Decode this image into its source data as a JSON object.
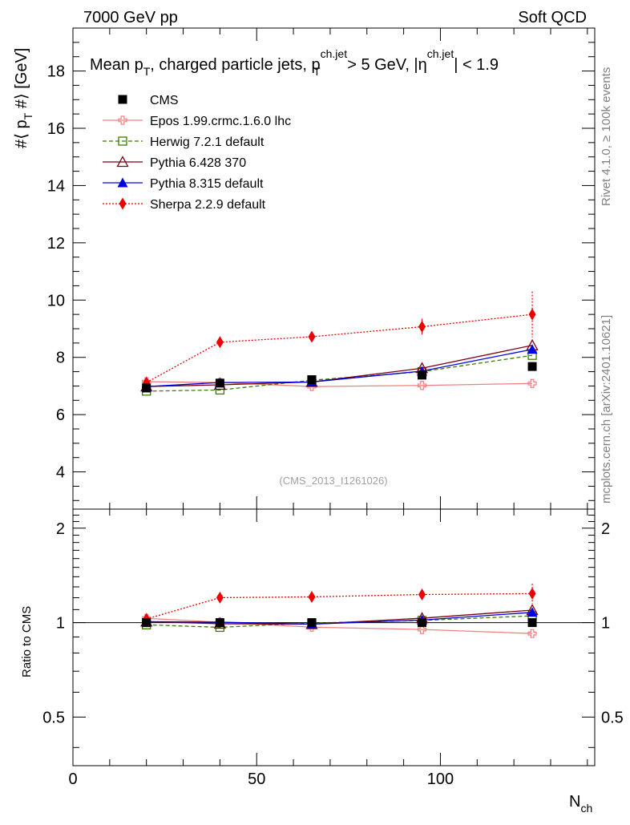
{
  "header": {
    "left": "7000 GeV pp",
    "right": "Soft QCD"
  },
  "side_labels": {
    "rivet": "Rivet 4.1.0, ≥ 100k events",
    "mcplots": "mcplots.cern.ch [arXiv:2401.10621]"
  },
  "title": {
    "t1": "Mean p",
    "t1_sub": "T",
    "t2": ", charged particle jets, p",
    "t2_sup": "ch.jet",
    "t2_sub": "T",
    "t3": " > 5 GeV,  |η",
    "t3_sup": "ch.jet",
    "t4": "| < 1.9"
  },
  "analysis_id": "(CMS_2013_I1261026)",
  "axis": {
    "ylabel_top_a": "#⟨ p",
    "ylabel_top_sub": "T",
    "ylabel_top_b": " #⟩ [GeV]",
    "ylabel_bottom": "Ratio to CMS",
    "xlabel_main": "N",
    "xlabel_sub": "ch"
  },
  "colors": {
    "CMS": "#000000",
    "Epos": "#f08080",
    "Herwig": "#3a7d00",
    "Pythia6": "#7a0010",
    "Pythia8": "#0000dd",
    "Sherpa": "#ee0000"
  },
  "chart_data": {
    "type": "line",
    "x": [
      20,
      40,
      65,
      95,
      125
    ],
    "xlim": [
      0,
      142
    ],
    "xticks": [
      0,
      50,
      100
    ],
    "xtick_labels": [
      "0",
      "50",
      "100"
    ],
    "main": {
      "ylim": [
        2.7,
        19.5
      ],
      "yticks": [
        4,
        6,
        8,
        10,
        12,
        14,
        16,
        18
      ],
      "ytick_labels": [
        "4",
        "6",
        "8",
        "10",
        "12",
        "14",
        "16",
        "18"
      ]
    },
    "ratio": {
      "ylim": [
        0.35,
        2.3
      ],
      "yticks": [
        0.5,
        1,
        2
      ],
      "ytick_labels": [
        "0.5",
        "1",
        "2"
      ]
    },
    "series": [
      {
        "key": "CMS",
        "name": "CMS",
        "marker": "square-filled",
        "dash": "none",
        "values": [
          6.93,
          7.1,
          7.22,
          7.38,
          7.68
        ],
        "ratio": [
          1.0,
          1.0,
          1.0,
          1.0,
          1.0
        ]
      },
      {
        "key": "Epos",
        "name": "Epos 1.99.crmc.1.6.0 lhc",
        "marker": "cross-open",
        "dash": "solid",
        "values": [
          7.15,
          7.12,
          6.98,
          7.02,
          7.09
        ],
        "ratio": [
          1.032,
          1.003,
          0.967,
          0.951,
          0.923
        ]
      },
      {
        "key": "Herwig",
        "name": "Herwig 7.2.1 default",
        "marker": "square-open",
        "dash": "dashed",
        "values": [
          6.82,
          6.86,
          7.2,
          7.5,
          8.07
        ],
        "ratio": [
          0.984,
          0.966,
          0.997,
          1.016,
          1.051
        ]
      },
      {
        "key": "Pythia6",
        "name": "Pythia 6.428 370",
        "marker": "triangle-open",
        "dash": "solid",
        "values": [
          6.98,
          7.04,
          7.14,
          7.62,
          8.42
        ],
        "ratio": [
          1.007,
          0.992,
          0.989,
          1.033,
          1.096
        ]
      },
      {
        "key": "Pythia8",
        "name": "Pythia 8.315 default",
        "marker": "triangle-filled",
        "dash": "solid",
        "values": [
          6.98,
          7.12,
          7.14,
          7.52,
          8.28
        ],
        "ratio": [
          1.007,
          1.003,
          0.989,
          1.019,
          1.078
        ]
      },
      {
        "key": "Sherpa",
        "name": "Sherpa 2.2.9 default",
        "marker": "diamond-filled",
        "dash": "dotted",
        "values": [
          7.12,
          8.53,
          8.72,
          9.07,
          9.5
        ],
        "ratio": [
          1.027,
          1.201,
          1.208,
          1.229,
          1.237
        ]
      }
    ]
  }
}
